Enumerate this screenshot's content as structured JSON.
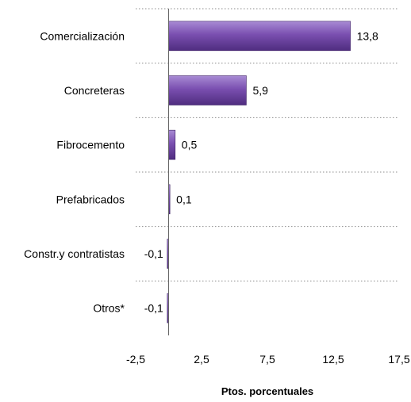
{
  "chart_data": {
    "type": "bar",
    "orientation": "horizontal",
    "categories": [
      "Comercialización",
      "Concreteras",
      "Fibrocemento",
      "Prefabricados",
      "Constr.y contratistas",
      "Otros*"
    ],
    "values": [
      13.8,
      5.9,
      0.5,
      0.1,
      -0.1,
      -0.1
    ],
    "value_labels": [
      "13,8",
      "5,9",
      "0,5",
      "0,1",
      "-0,1",
      "-0,1"
    ],
    "xlabel": "Ptos. porcentuales",
    "xlim": [
      -2.5,
      17.5
    ],
    "xticks": [
      -2.5,
      2.5,
      7.5,
      12.5,
      17.5
    ],
    "xtick_labels": [
      "-2,5",
      "2,5",
      "7,5",
      "12,5",
      "17,5"
    ],
    "grid": "horizontal dotted",
    "bar_color": "#7a4fb0"
  }
}
